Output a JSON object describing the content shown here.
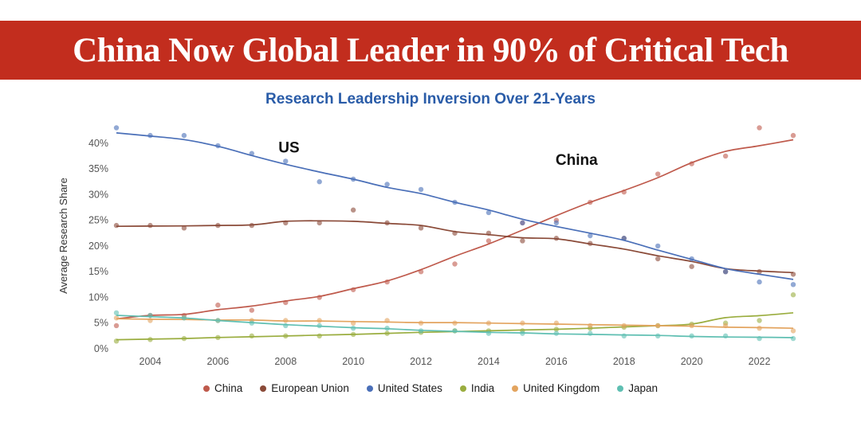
{
  "banner": {
    "title": "China Now Global Leader in 90% of Critical Tech",
    "bg_color": "#c22d1e",
    "text_color": "#ffffff"
  },
  "chart": {
    "title": "Research Leadership Inversion Over 21-Years",
    "title_color": "#2a5ca8",
    "ylabel": "Average Research Share"
  },
  "chart_data": {
    "type": "line",
    "x": [
      2003,
      2004,
      2005,
      2006,
      2007,
      2008,
      2009,
      2010,
      2011,
      2012,
      2013,
      2014,
      2015,
      2016,
      2017,
      2018,
      2019,
      2020,
      2021,
      2022,
      2023
    ],
    "x_ticks": [
      2004,
      2006,
      2008,
      2010,
      2012,
      2014,
      2016,
      2018,
      2020,
      2022
    ],
    "y_ticks": [
      0,
      5,
      10,
      15,
      20,
      25,
      30,
      35,
      40
    ],
    "y_tick_suffix": "%",
    "ylim": [
      0,
      44
    ],
    "grid": false,
    "legend_position": "bottom",
    "series": [
      {
        "name": "China",
        "color": "#bf5a4c",
        "values": [
          4.5,
          6.5,
          6.5,
          8.5,
          7.5,
          9,
          10,
          11.5,
          13,
          15,
          16.5,
          21,
          24.5,
          25,
          28.5,
          30.5,
          34,
          36,
          37.5,
          43,
          41.5
        ]
      },
      {
        "name": "European Union",
        "color": "#8a4a38",
        "values": [
          24,
          24,
          23.5,
          24,
          24,
          24.5,
          24.5,
          27,
          24.5,
          23.5,
          22.5,
          22.5,
          21,
          21.5,
          20.5,
          21.5,
          17.5,
          16,
          15,
          15,
          14.5
        ]
      },
      {
        "name": "United States",
        "color": "#4a6fb8",
        "values": [
          43,
          41.5,
          41.5,
          39.5,
          38,
          36.5,
          32.5,
          33,
          32,
          31,
          28.5,
          26.5,
          24.5,
          24.5,
          22,
          21.5,
          20,
          17.5,
          15,
          13,
          12.5
        ]
      },
      {
        "name": "India",
        "color": "#9aad3f",
        "values": [
          1.5,
          1.8,
          2,
          2.2,
          2.5,
          2.5,
          2.5,
          2.8,
          3,
          3.2,
          3.5,
          3.5,
          3.5,
          3.8,
          4,
          4.2,
          4.5,
          4.8,
          5,
          5.5,
          10.5
        ]
      },
      {
        "name": "United Kingdom",
        "color": "#e3a45f",
        "values": [
          6,
          5.5,
          6,
          5.5,
          5.5,
          5.5,
          5.5,
          5,
          5.5,
          5,
          5,
          5,
          5,
          5,
          4.5,
          4.5,
          4.5,
          4.5,
          4.5,
          4,
          3.5
        ]
      },
      {
        "name": "Japan",
        "color": "#5fbfb2",
        "values": [
          7,
          6.5,
          6,
          5.5,
          5,
          4.5,
          4.5,
          4,
          4,
          3.5,
          3.5,
          3,
          3,
          3,
          3,
          2.5,
          2.5,
          2.5,
          2.5,
          2,
          2
        ]
      }
    ],
    "annotations": [
      {
        "label": "US",
        "x": 2008.1,
        "y": 38.2
      },
      {
        "label": "China",
        "x": 2016.6,
        "y": 35.8
      }
    ]
  }
}
